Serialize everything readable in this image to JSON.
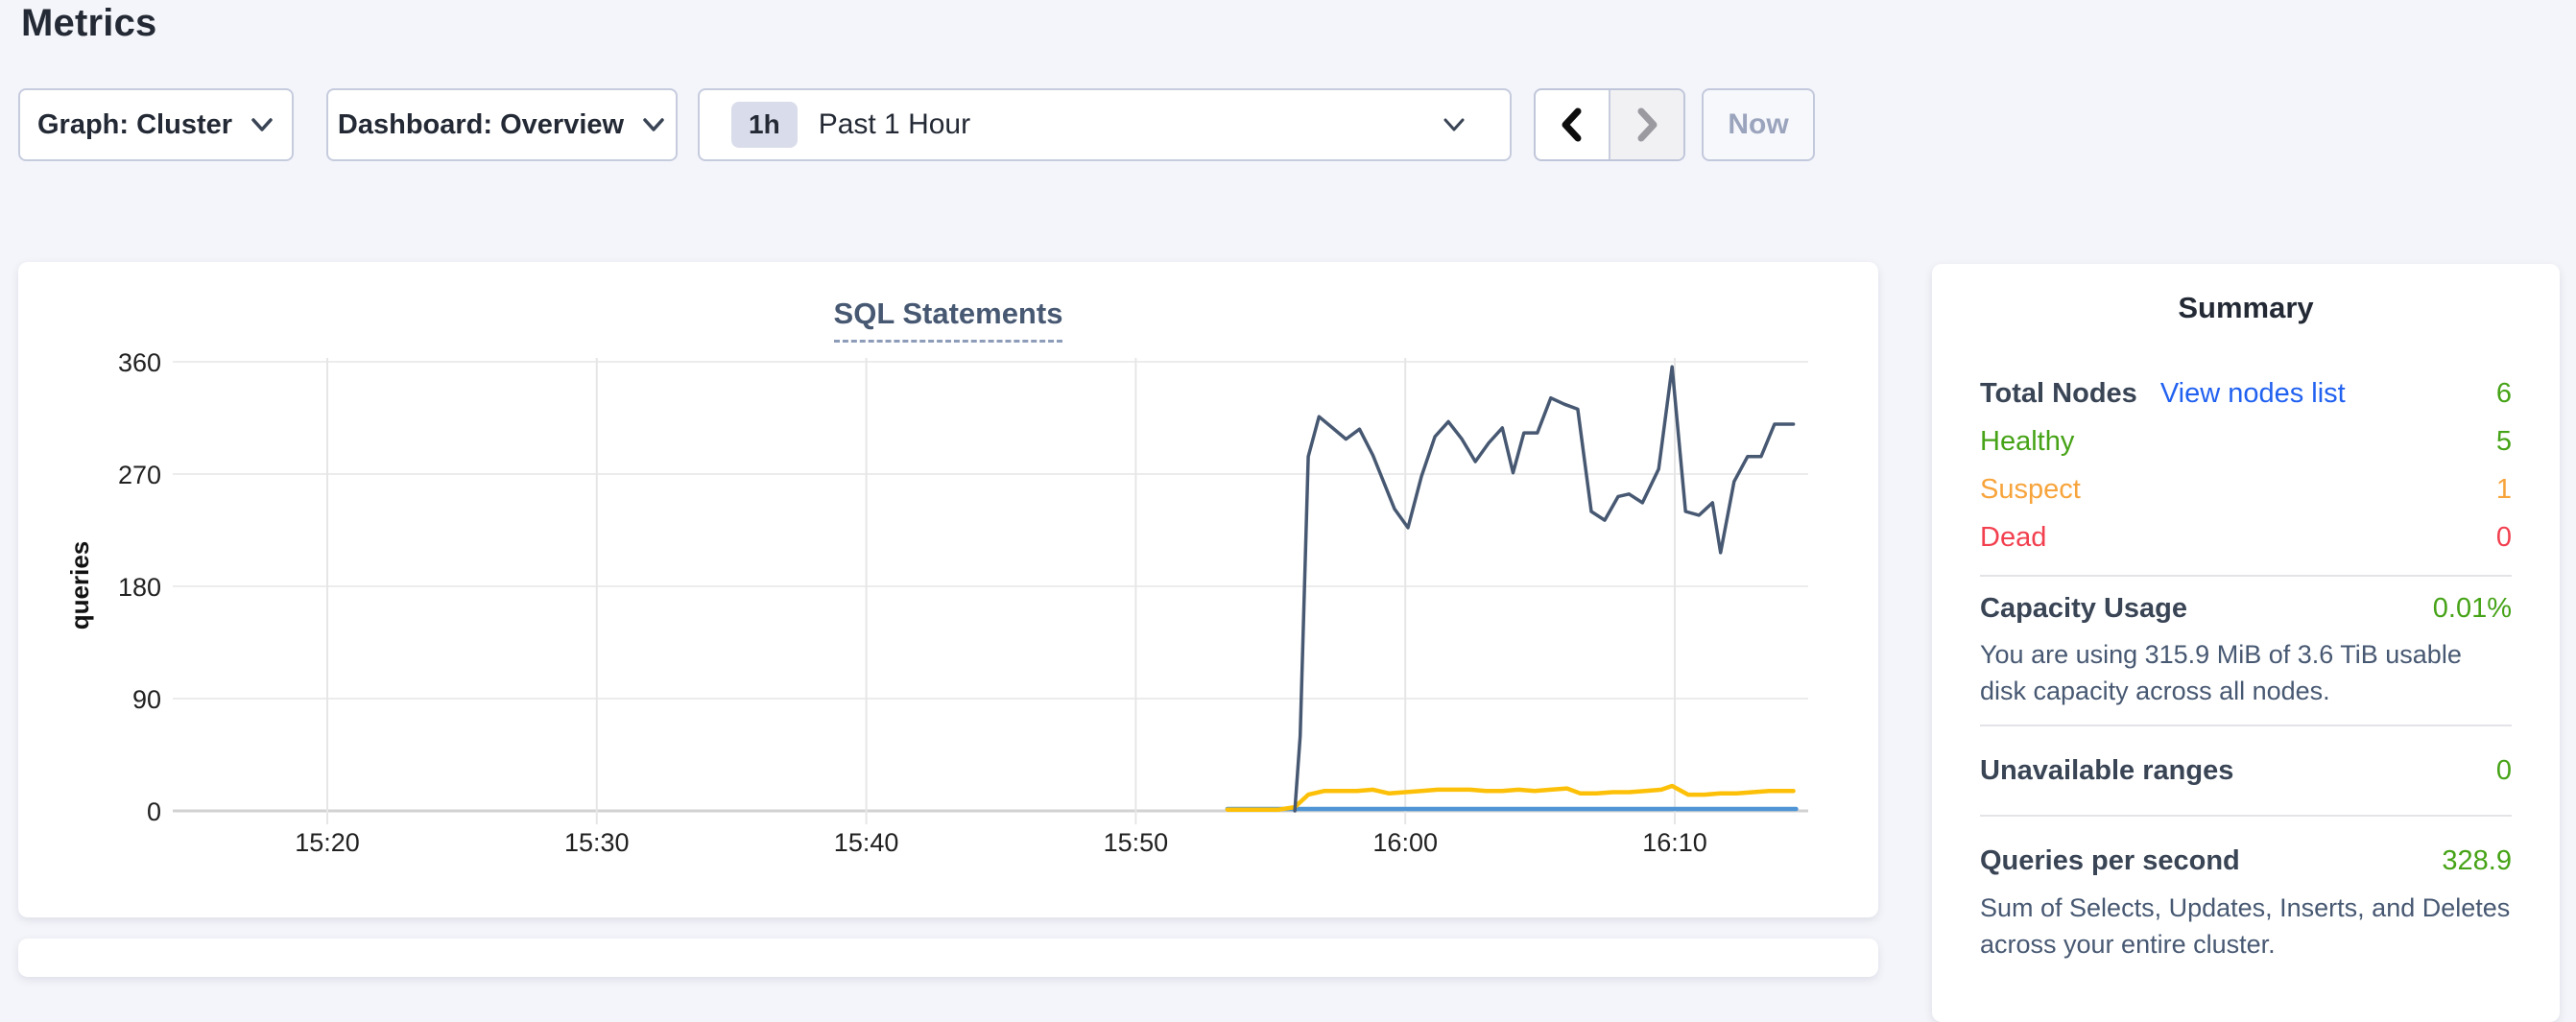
{
  "page": {
    "title": "Metrics",
    "background": "#f4f5fa"
  },
  "controls": {
    "graph_dropdown": {
      "label": "Graph: Cluster"
    },
    "dashboard_dropdown": {
      "label": "Dashboard: Overview"
    },
    "time_selector": {
      "badge": "1h",
      "label": "Past 1 Hour"
    },
    "prev_button": {
      "icon": "chevron-left-icon",
      "enabled": true
    },
    "next_button": {
      "icon": "chevron-right-icon",
      "enabled": false
    },
    "now_button": {
      "label": "Now",
      "enabled": false
    }
  },
  "summary": {
    "title": "Summary",
    "total_nodes_label": "Total Nodes",
    "view_nodes_link": "View nodes list",
    "total_nodes_value": "6",
    "healthy_label": "Healthy",
    "healthy_value": "5",
    "suspect_label": "Suspect",
    "suspect_value": "1",
    "dead_label": "Dead",
    "dead_value": "0",
    "capacity_label": "Capacity Usage",
    "capacity_value": "0.01%",
    "capacity_desc": "You are using 315.9 MiB of 3.6 TiB usable disk capacity across all nodes.",
    "unavailable_label": "Unavailable ranges",
    "unavailable_value": "0",
    "qps_label": "Queries per second",
    "qps_value": "328.9",
    "qps_desc": "Sum of Selects, Updates, Inserts, and Deletes across your entire cluster."
  },
  "colors": {
    "green": "#46a317",
    "orange": "#f7a43c",
    "red": "#f2404f",
    "link_blue": "#2161f0",
    "grid": "#ececec",
    "axis_baseline": "#d2d2d2",
    "navy_line": "#475872",
    "yellow_line": "#fdc008",
    "blue_line": "#4f94d4"
  },
  "chart_data": {
    "type": "line",
    "title": "SQL Statements",
    "xlabel": "",
    "ylabel": "queries",
    "ylim": [
      0,
      360
    ],
    "y_ticks": [
      0,
      90,
      180,
      270,
      360
    ],
    "x_ticks": [
      "15:20",
      "15:30",
      "15:40",
      "15:50",
      "16:00",
      "16:10"
    ],
    "x_range_minutes_after_1500": [
      14.3,
      75.0
    ],
    "grid": true,
    "legend_position": "none",
    "note": "x values below are minutes after 15:00; no data exists before ~15:53",
    "series": [
      {
        "name": "navy-line",
        "color": "#475872",
        "width": 3.5,
        "points": [
          [
            55.9,
            0
          ],
          [
            56.1,
            60
          ],
          [
            56.4,
            284
          ],
          [
            56.8,
            316
          ],
          [
            57.3,
            307
          ],
          [
            57.8,
            298
          ],
          [
            58.3,
            306
          ],
          [
            58.8,
            285
          ],
          [
            59.6,
            242
          ],
          [
            60.1,
            227
          ],
          [
            60.6,
            268
          ],
          [
            61.1,
            300
          ],
          [
            61.6,
            312
          ],
          [
            62.1,
            298
          ],
          [
            62.6,
            280
          ],
          [
            63.1,
            295
          ],
          [
            63.6,
            307
          ],
          [
            64.0,
            271
          ],
          [
            64.4,
            303
          ],
          [
            64.9,
            303
          ],
          [
            65.4,
            331
          ],
          [
            65.9,
            326
          ],
          [
            66.4,
            322
          ],
          [
            66.9,
            240
          ],
          [
            67.4,
            233
          ],
          [
            67.9,
            252
          ],
          [
            68.3,
            254
          ],
          [
            68.8,
            247
          ],
          [
            69.4,
            274
          ],
          [
            69.9,
            356
          ],
          [
            70.4,
            240
          ],
          [
            70.9,
            237
          ],
          [
            71.4,
            247
          ],
          [
            71.7,
            207
          ],
          [
            72.2,
            264
          ],
          [
            72.7,
            284
          ],
          [
            73.2,
            284
          ],
          [
            73.7,
            310
          ],
          [
            74.4,
            310
          ]
        ]
      },
      {
        "name": "yellow-line",
        "color": "#fdc008",
        "width": 4.5,
        "points": [
          [
            53.4,
            1
          ],
          [
            55.3,
            1
          ],
          [
            55.9,
            3
          ],
          [
            56.4,
            13
          ],
          [
            57.0,
            16
          ],
          [
            57.6,
            16
          ],
          [
            58.2,
            16
          ],
          [
            58.8,
            17
          ],
          [
            59.4,
            14
          ],
          [
            60.0,
            15
          ],
          [
            60.6,
            16
          ],
          [
            61.2,
            17
          ],
          [
            61.8,
            17
          ],
          [
            62.4,
            17
          ],
          [
            63.0,
            16
          ],
          [
            63.6,
            16
          ],
          [
            64.2,
            17
          ],
          [
            64.8,
            16
          ],
          [
            65.4,
            17
          ],
          [
            66.0,
            18
          ],
          [
            66.5,
            14
          ],
          [
            67.1,
            14
          ],
          [
            67.7,
            15
          ],
          [
            68.3,
            15
          ],
          [
            68.9,
            16
          ],
          [
            69.5,
            17
          ],
          [
            69.9,
            20
          ],
          [
            70.5,
            13
          ],
          [
            71.1,
            13
          ],
          [
            71.7,
            14
          ],
          [
            72.3,
            14
          ],
          [
            72.9,
            15
          ],
          [
            73.5,
            16
          ],
          [
            74.4,
            16
          ]
        ]
      },
      {
        "name": "blue-line",
        "color": "#4f94d4",
        "width": 4.5,
        "points": [
          [
            53.4,
            1.5
          ],
          [
            74.5,
            1.5
          ]
        ]
      }
    ]
  }
}
